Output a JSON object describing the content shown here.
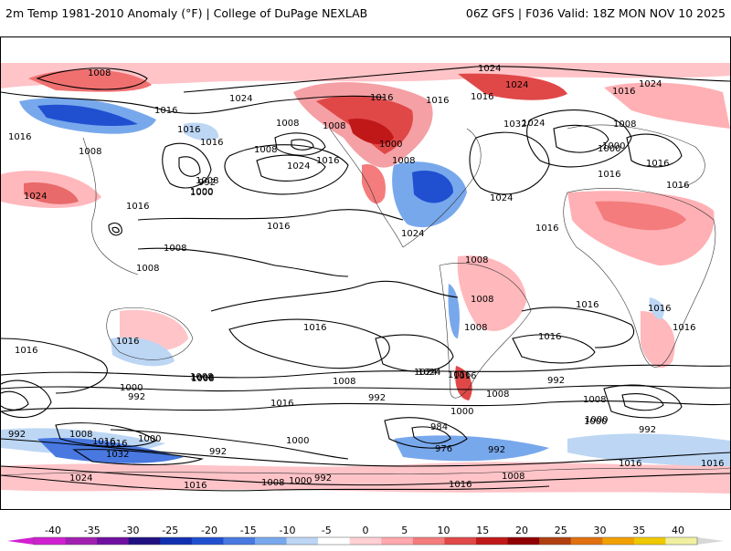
{
  "header": {
    "title_left": "2m Temp 1981-2010 Anomaly (°F) | College of DuPage NEXLAB",
    "title_right": "06Z GFS | F036 Valid: 18Z MON NOV 10 2025"
  },
  "colorbar": {
    "ticks": [
      "-40",
      "-35",
      "-30",
      "-25",
      "-20",
      "-15",
      "-10",
      "-5",
      "0",
      "5",
      "10",
      "15",
      "20",
      "25",
      "30",
      "35",
      "40"
    ],
    "colors": [
      "#d020d0",
      "#a020b0",
      "#7010a0",
      "#201080",
      "#1030b0",
      "#2050d0",
      "#4878e0",
      "#78a8ec",
      "#bcd6f4",
      "#ffffff",
      "#ffd0d4",
      "#ffa8ae",
      "#f47c7c",
      "#e04848",
      "#c01818",
      "#900000",
      "#b04010",
      "#e07010",
      "#f0a000",
      "#f0c800",
      "#f0f0a0"
    ],
    "min_color": "#d020d0",
    "max_color": "#d8d8d8"
  },
  "isobar_labels": [
    "1008",
    "1024",
    "1024",
    "1024",
    "1016",
    "1016",
    "1016",
    "1016",
    "1016",
    "1024",
    "1032",
    "1016",
    "1016",
    "1016",
    "1008",
    "1008",
    "1000",
    "1008",
    "1000",
    "1008",
    "1008",
    "1024",
    "1008",
    "1016",
    "1000",
    "1008",
    "1024",
    "1016",
    "1016",
    "1024",
    "1000",
    "1024",
    "992",
    "1000",
    "1016",
    "1024",
    "1016",
    "1016",
    "1016",
    "1008",
    "1008",
    "1008",
    "1016",
    "1008",
    "1016",
    "1008",
    "1016",
    "1016",
    "1016",
    "1016",
    "1016",
    "1024",
    "1008",
    "1016",
    "1008",
    "992",
    "1000",
    "992",
    "1000",
    "1008",
    "1016",
    "1008",
    "992",
    "992",
    "1000",
    "1008",
    "992",
    "1016",
    "1008",
    "1000",
    "984",
    "976",
    "992",
    "1000",
    "992",
    "1032",
    "1016",
    "1024",
    "1016",
    "1008",
    "1000",
    "992",
    "1016",
    "1016",
    "1008",
    "1016",
    "1008",
    "1016",
    "1024",
    "1000"
  ]
}
